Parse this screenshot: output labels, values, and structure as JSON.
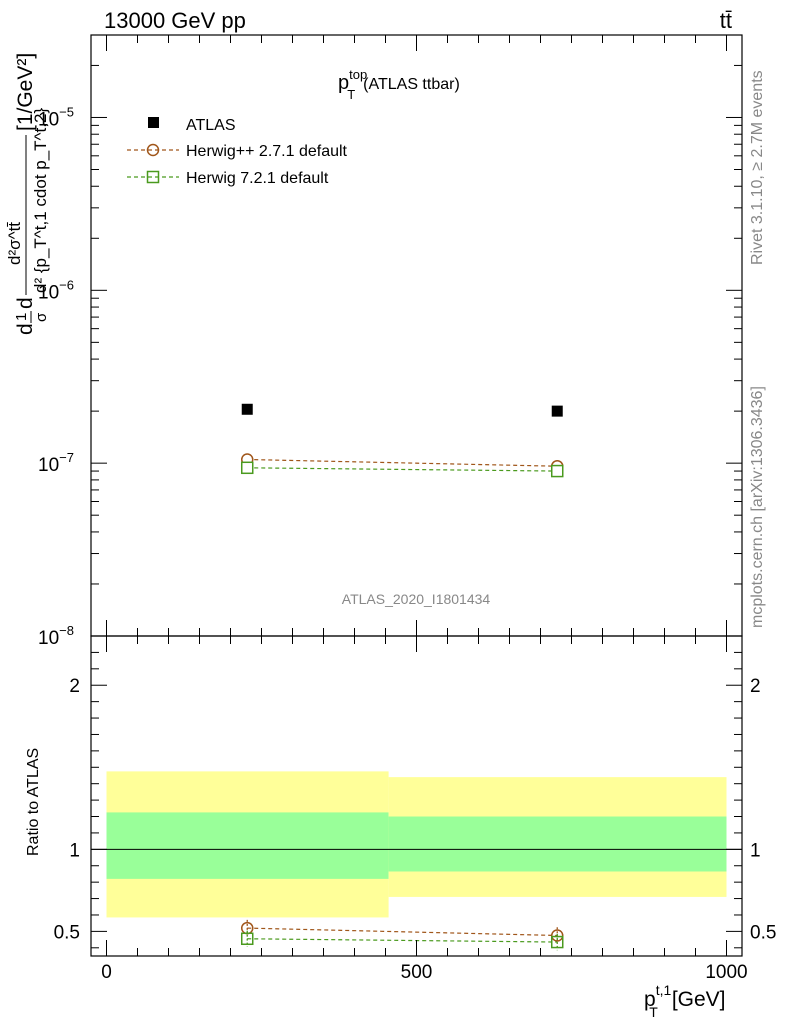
{
  "header": {
    "left": "13000 GeV pp",
    "right": "tt̄"
  },
  "side_labels": {
    "rivet": "Rivet 3.1.10, ≥ 2.7M events",
    "mcplots": "mcplots.cern.ch [arXiv:1306.3436]"
  },
  "chart_data": [
    {
      "type": "scatter",
      "title": "p_T^top (ATLAS ttbar)",
      "title_parts": {
        "p": "p",
        "sup": "top",
        "sub": "T",
        "rest": "(ATLAS ttbar)"
      },
      "watermark": "ATLAS_2020_I1801434",
      "ylabel_parts": {
        "prefix": "d",
        "frac_num": "1",
        "frac_den": "σ",
        "mid": "d",
        "num": "d²σ^tt̄",
        "den": "d² {p_T^t,1 cdot p_T^t,2}",
        "unit": "[1/GeV²]"
      },
      "yscale": "log",
      "ylim": [
        1e-08,
        3e-05
      ],
      "xlim": [
        -25,
        1025
      ],
      "ytick_labels": [
        {
          "base": "10",
          "exp": "−8",
          "value": 1e-08
        },
        {
          "base": "10",
          "exp": "−7",
          "value": 1e-07
        },
        {
          "base": "10",
          "exp": "−6",
          "value": 1e-06
        },
        {
          "base": "10",
          "exp": "−5",
          "value": 1e-05
        }
      ],
      "legend_position": "top-left",
      "series": [
        {
          "name": "ATLAS",
          "style": "data",
          "color": "#000000",
          "x": [
            227,
            727
          ],
          "y": [
            2.05e-07,
            2e-07
          ]
        },
        {
          "name": "Herwig++ 2.7.1 default",
          "style": "circle",
          "color": "#a0561a",
          "x": [
            227,
            727
          ],
          "y": [
            1.05e-07,
            9.6e-08
          ]
        },
        {
          "name": "Herwig 7.2.1 default",
          "style": "square",
          "color": "#4a9a1e",
          "x": [
            227,
            727
          ],
          "y": [
            9.4e-08,
            9e-08
          ]
        }
      ]
    },
    {
      "type": "scatter",
      "ylabel": "Ratio to ATLAS",
      "xlabel_parts": {
        "p": "p",
        "sup": "t,1",
        "sub": "T",
        "unit": "[GeV]"
      },
      "xlim": [
        -25,
        1025
      ],
      "ylim": [
        0.35,
        2.3
      ],
      "xtick_labels": [
        {
          "label": "0",
          "value": 0
        },
        {
          "label": "500",
          "value": 500
        },
        {
          "label": "1000",
          "value": 1000
        }
      ],
      "ytick_labels": [
        {
          "label": "0.5",
          "value": 0.5
        },
        {
          "label": "1",
          "value": 1
        },
        {
          "label": "2",
          "value": 2
        }
      ],
      "bands": [
        {
          "x0": 0,
          "x1": 455,
          "outer": [
            0.585,
            1.475
          ],
          "inner": [
            0.82,
            1.225
          ]
        },
        {
          "x0": 455,
          "x1": 1000,
          "outer": [
            0.71,
            1.44
          ],
          "inner": [
            0.865,
            1.2
          ]
        }
      ],
      "band_colors": {
        "outer": "#ffff99",
        "inner": "#99ff99"
      },
      "series": [
        {
          "name": "Herwig++ 2.7.1 default",
          "style": "circle",
          "color": "#a0561a",
          "x": [
            227,
            727
          ],
          "y": [
            0.52,
            0.475
          ],
          "err": [
            0.05,
            0.05
          ]
        },
        {
          "name": "Herwig 7.2.1 default",
          "style": "square",
          "color": "#4a9a1e",
          "x": [
            227,
            727
          ],
          "y": [
            0.455,
            0.435
          ],
          "err": [
            0.05,
            0.05
          ]
        }
      ]
    }
  ]
}
